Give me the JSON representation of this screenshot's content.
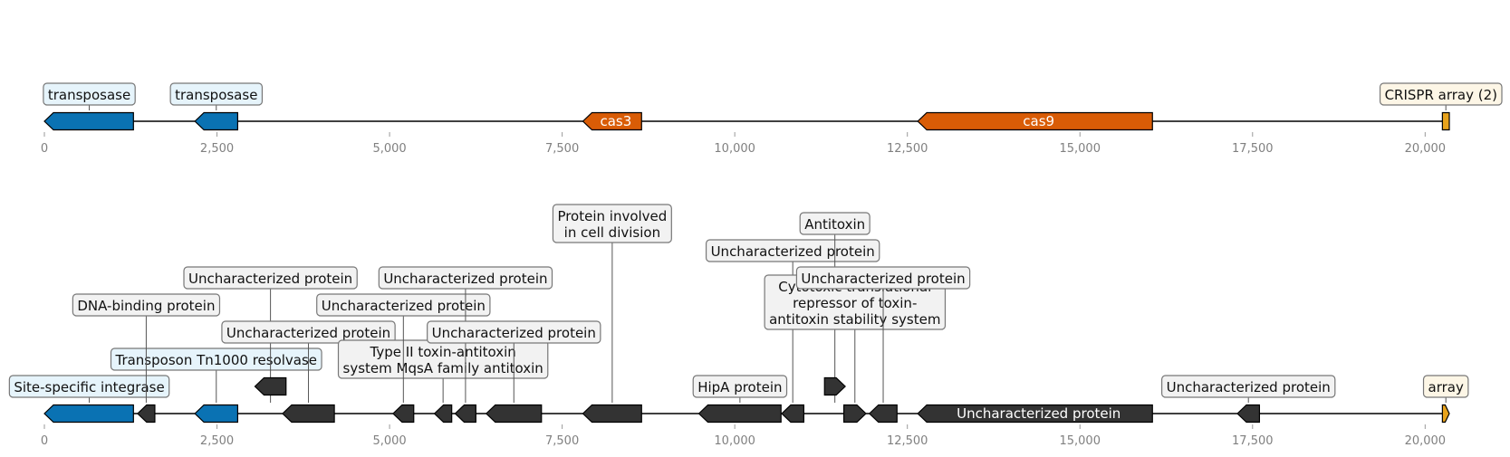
{
  "colors": {
    "transposase_blue": "#0a72b3",
    "cas_orange": "#d95c06",
    "array_gold": "#e8a31c",
    "hypothetical_dark": "#333333",
    "label_box_blue": "#e6f4fb",
    "label_box_cream": "#fdf6e6",
    "label_box_gray": "#f2f2f2"
  },
  "axis_ticks": [
    "0",
    "2,500",
    "5,000",
    "7,500",
    "10,000",
    "12,500",
    "15,000",
    "17,500",
    "20,000"
  ],
  "tracks": [
    {
      "name": "top-track",
      "features": [
        {
          "start": 0,
          "end": 1290,
          "strand": -1,
          "color": "transposase_blue"
        },
        {
          "start": 2180,
          "end": 2800,
          "strand": -1,
          "color": "transposase_blue"
        },
        {
          "start": 7800,
          "end": 8650,
          "strand": -1,
          "color": "cas_orange",
          "text": "cas3"
        },
        {
          "start": 12650,
          "end": 16050,
          "strand": -1,
          "color": "cas_orange",
          "text": "cas9"
        },
        {
          "start": 20250,
          "end": 20350,
          "strand": 0,
          "color": "array_gold"
        }
      ],
      "labels": [
        {
          "text": [
            "transposase"
          ],
          "anchor": 650,
          "level": 0,
          "box": "label_box_blue"
        },
        {
          "text": [
            "transposase"
          ],
          "anchor": 2490,
          "level": 0,
          "box": "label_box_blue"
        },
        {
          "text": [
            "CRISPR array (2)"
          ],
          "anchor": 20300,
          "level": 0,
          "box": "label_box_cream",
          "align": "end"
        }
      ]
    },
    {
      "name": "bottom-track",
      "features": [
        {
          "start": 0,
          "end": 1290,
          "strand": -1,
          "color": "transposase_blue"
        },
        {
          "start": 1350,
          "end": 1600,
          "strand": -1,
          "color": "hypothetical_dark"
        },
        {
          "start": 2180,
          "end": 2800,
          "strand": -1,
          "color": "transposase_blue"
        },
        {
          "start": 3050,
          "end": 3500,
          "strand": -1,
          "color": "hypothetical_dark",
          "raised": true
        },
        {
          "start": 3450,
          "end": 4200,
          "strand": -1,
          "color": "hypothetical_dark"
        },
        {
          "start": 5050,
          "end": 5350,
          "strand": -1,
          "color": "hypothetical_dark"
        },
        {
          "start": 5650,
          "end": 5900,
          "strand": -1,
          "color": "hypothetical_dark"
        },
        {
          "start": 5950,
          "end": 6250,
          "strand": -1,
          "color": "hypothetical_dark"
        },
        {
          "start": 6400,
          "end": 7200,
          "strand": -1,
          "color": "hypothetical_dark"
        },
        {
          "start": 7800,
          "end": 8650,
          "strand": -1,
          "color": "hypothetical_dark"
        },
        {
          "start": 9480,
          "end": 10670,
          "strand": -1,
          "color": "hypothetical_dark"
        },
        {
          "start": 10680,
          "end": 11000,
          "strand": -1,
          "color": "hypothetical_dark"
        },
        {
          "start": 11300,
          "end": 11600,
          "strand": 1,
          "color": "hypothetical_dark",
          "raised": true
        },
        {
          "start": 11580,
          "end": 11900,
          "strand": 1,
          "color": "hypothetical_dark"
        },
        {
          "start": 11950,
          "end": 12350,
          "strand": -1,
          "color": "hypothetical_dark"
        },
        {
          "start": 12650,
          "end": 16050,
          "strand": -1,
          "color": "hypothetical_dark",
          "text": "Uncharacterized protein"
        },
        {
          "start": 17280,
          "end": 17600,
          "strand": -1,
          "color": "hypothetical_dark"
        },
        {
          "start": 20250,
          "end": 20350,
          "strand": 1,
          "color": "array_gold"
        }
      ],
      "labels": [
        {
          "text": [
            "Site-specific integrase"
          ],
          "anchor": 650,
          "level": 0,
          "box": "label_box_blue"
        },
        {
          "text": [
            "Transposon Tn1000 resolvase"
          ],
          "anchor": 2490,
          "level": 1,
          "box": "label_box_blue"
        },
        {
          "text": [
            "DNA-binding protein"
          ],
          "anchor": 1475,
          "level": 3,
          "box": "label_box_gray"
        },
        {
          "text": [
            "Uncharacterized protein"
          ],
          "anchor": 3275,
          "level": 4,
          "box": "label_box_gray"
        },
        {
          "text": [
            "Uncharacterized protein"
          ],
          "anchor": 3825,
          "level": 2,
          "box": "label_box_gray"
        },
        {
          "text": [
            "Type II toxin-antitoxin",
            "system MqsA family antitoxin"
          ],
          "anchor": 5775,
          "level": 0.7,
          "box": "label_box_gray"
        },
        {
          "text": [
            "Uncharacterized protein"
          ],
          "anchor": 5200,
          "level": 3,
          "box": "label_box_gray"
        },
        {
          "text": [
            "Uncharacterized protein"
          ],
          "anchor": 6100,
          "level": 4,
          "box": "label_box_gray"
        },
        {
          "text": [
            "Uncharacterized protein"
          ],
          "anchor": 6800,
          "level": 2,
          "box": "label_box_gray"
        },
        {
          "text": [
            "Protein involved",
            "in cell division"
          ],
          "anchor": 8225,
          "level": 5.7,
          "box": "label_box_gray"
        },
        {
          "text": [
            "HipA protein"
          ],
          "anchor": 10075,
          "level": 0,
          "box": "label_box_gray"
        },
        {
          "text": [
            "Uncharacterized protein"
          ],
          "anchor": 10840,
          "level": 5,
          "box": "label_box_gray"
        },
        {
          "text": [
            "Antitoxin"
          ],
          "anchor": 11450,
          "level": 6,
          "box": "label_box_gray"
        },
        {
          "text": [
            "Cytotoxic translational",
            "repressor of toxin-",
            "antitoxin stability system"
          ],
          "anchor": 11740,
          "level": 2.5,
          "box": "label_box_gray"
        },
        {
          "text": [
            "Uncharacterized protein"
          ],
          "anchor": 12150,
          "level": 4,
          "box": "label_box_gray"
        },
        {
          "text": [
            "Uncharacterized protein"
          ],
          "anchor": 17440,
          "level": 0,
          "box": "label_box_gray"
        },
        {
          "text": [
            "array"
          ],
          "anchor": 20300,
          "level": 0,
          "box": "label_box_cream"
        }
      ]
    }
  ]
}
